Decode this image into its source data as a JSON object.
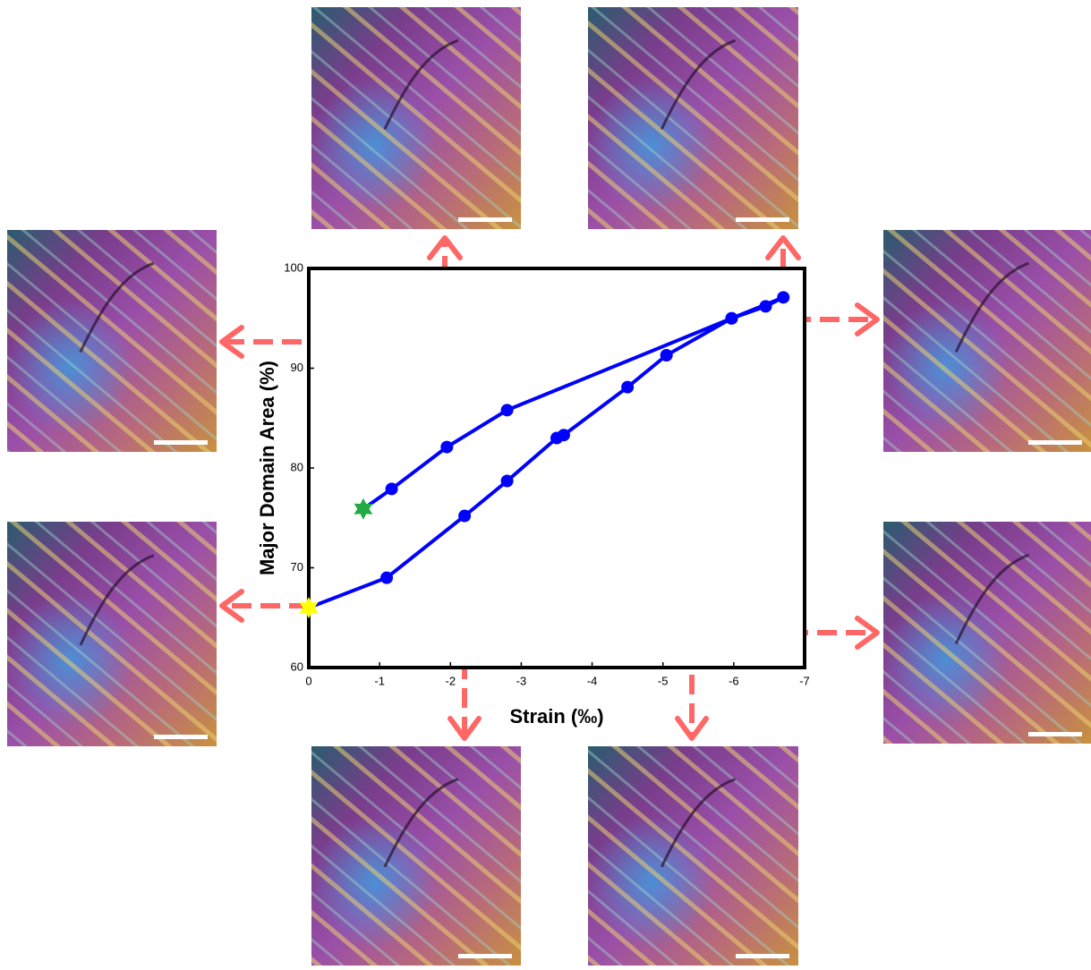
{
  "chart_data": {
    "type": "line",
    "xlabel": "Strain (‰)",
    "ylabel": "Major Domain Area (%)",
    "xlim": [
      0,
      -7
    ],
    "ylim": [
      60,
      100
    ],
    "xticks": [
      0,
      -1,
      -2,
      -3,
      -4,
      -5,
      -6,
      -7
    ],
    "yticks": [
      60,
      70,
      80,
      90,
      100
    ],
    "start_color": "#ffff00",
    "end_color": "#22aa44",
    "series": [
      {
        "color": "#0000ff",
        "x": [
          0,
          -1.1,
          -2.2,
          -2.8,
          -3.5,
          -3.6,
          -4.5,
          -5.05,
          -5.97,
          -6.45,
          -6.7,
          -5.97,
          -2.8,
          -1.95,
          -1.17,
          -0.77
        ],
        "values": [
          66,
          69,
          75.2,
          78.7,
          83,
          83.3,
          88.1,
          91.3,
          95,
          96.2,
          97.1,
          95,
          85.8,
          82.1,
          77.9,
          75.9
        ]
      }
    ]
  }
}
